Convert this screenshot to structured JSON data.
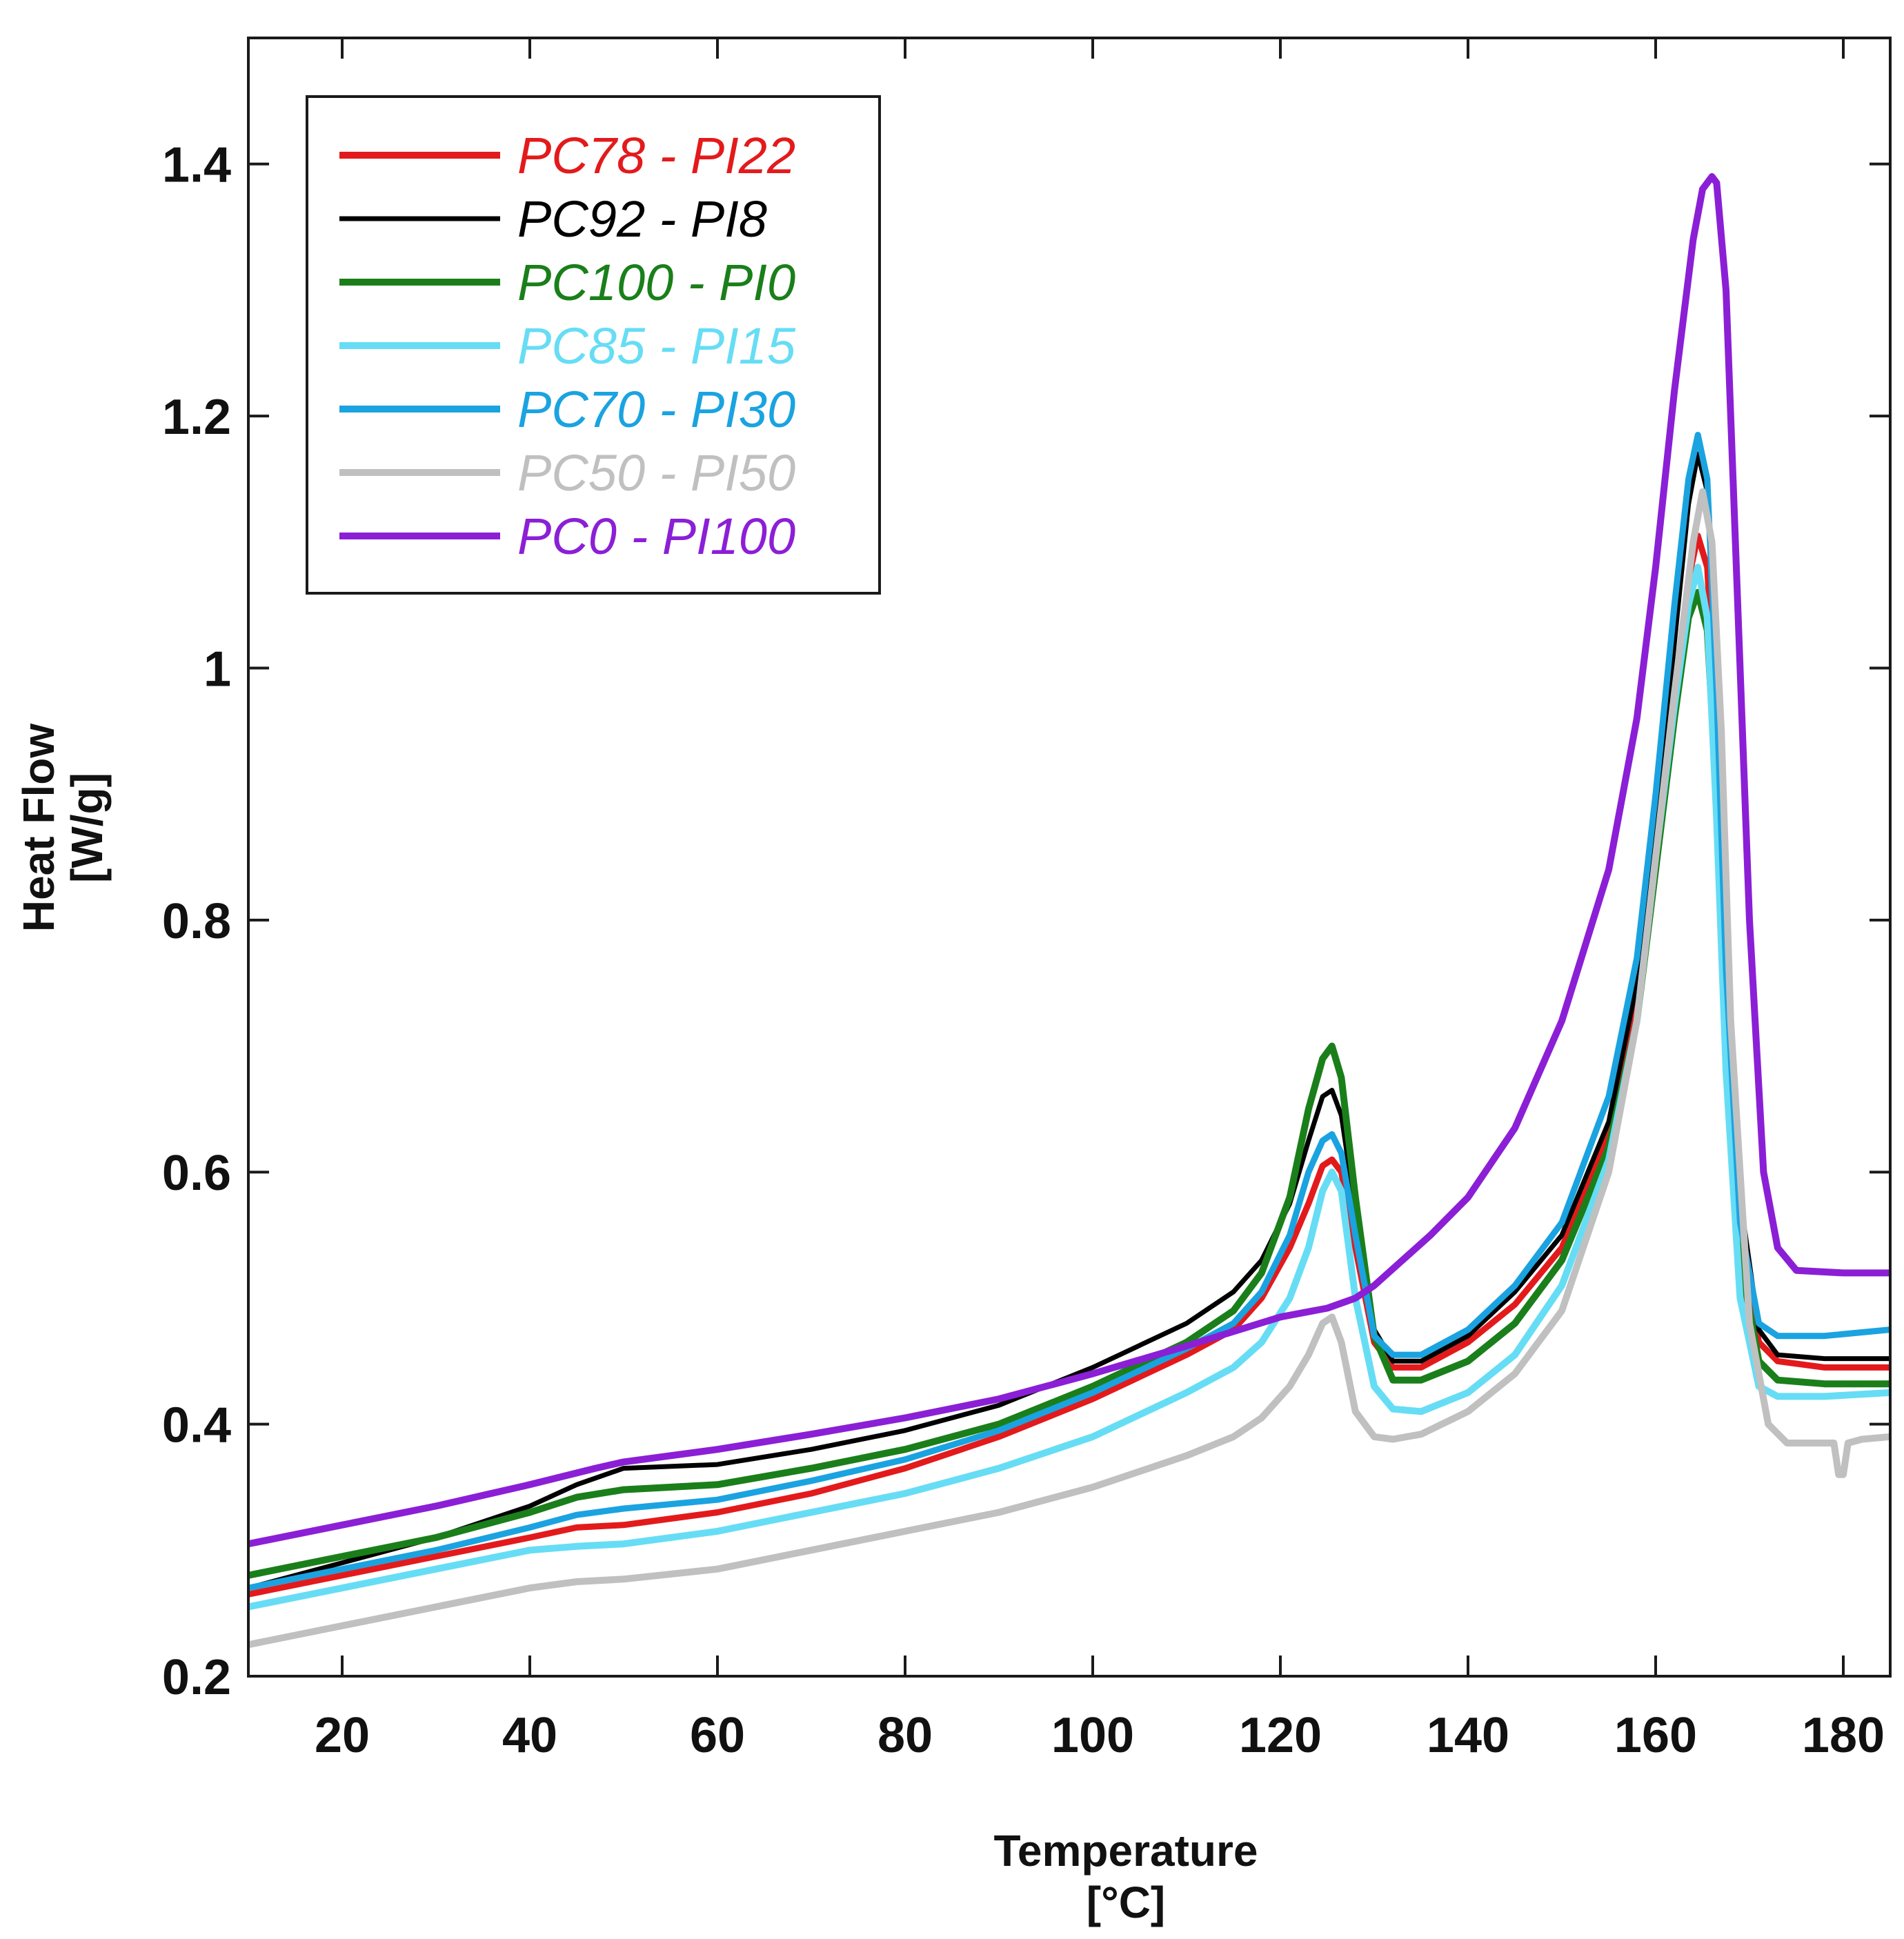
{
  "chart_data": {
    "type": "line",
    "title": "",
    "xlabel": "Temperature",
    "xunit": "[°C]",
    "ylabel": "Heat Flow",
    "yunit": "[W/g]",
    "xlim": [
      10,
      185
    ],
    "ylim": [
      0.2,
      1.5
    ],
    "xticks": [
      20,
      40,
      60,
      80,
      100,
      120,
      140,
      160,
      180
    ],
    "xtick_labels": [
      "20",
      "40",
      "60",
      "80",
      "100",
      "120",
      "140",
      "160",
      "180"
    ],
    "yticks": [
      0.2,
      0.4,
      0.6,
      0.8,
      1.0,
      1.2,
      1.4
    ],
    "ytick_labels": [
      "0.2",
      "0.4",
      "0.6",
      "0.8",
      "1",
      "1.2",
      "1.4"
    ],
    "grid": false,
    "legend_position": "top-left",
    "series": [
      {
        "name": "PC78 - PI22",
        "color": "#e31a1c",
        "x": [
          10,
          20,
          30,
          40,
          45,
          50,
          60,
          70,
          80,
          90,
          100,
          110,
          115,
          118,
          121,
          123,
          124.5,
          125.5,
          126.5,
          128,
          130,
          132,
          135,
          140,
          145,
          150,
          155,
          158,
          160,
          162,
          163.5,
          164.5,
          165.5,
          166.5,
          167.5,
          169,
          171,
          173,
          178,
          185
        ],
        "y": [
          0.265,
          0.28,
          0.295,
          0.31,
          0.318,
          0.32,
          0.33,
          0.345,
          0.365,
          0.39,
          0.42,
          0.455,
          0.475,
          0.5,
          0.54,
          0.575,
          0.605,
          0.61,
          0.6,
          0.54,
          0.465,
          0.445,
          0.445,
          0.465,
          0.495,
          0.54,
          0.63,
          0.73,
          0.85,
          0.98,
          1.07,
          1.105,
          1.08,
          0.95,
          0.75,
          0.55,
          0.465,
          0.45,
          0.445,
          0.445
        ]
      },
      {
        "name": "PC92 - PI8",
        "color": "#000000",
        "x": [
          10,
          20,
          30,
          40,
          45,
          50,
          60,
          70,
          80,
          90,
          100,
          110,
          115,
          118,
          121,
          123,
          124.5,
          125.5,
          126.5,
          128,
          130,
          132,
          135,
          140,
          145,
          150,
          155,
          158,
          160,
          162,
          163.5,
          164.5,
          165.5,
          166.5,
          167.5,
          169,
          171,
          173,
          178,
          185
        ],
        "y": [
          0.27,
          0.29,
          0.31,
          0.335,
          0.352,
          0.365,
          0.368,
          0.38,
          0.395,
          0.415,
          0.445,
          0.48,
          0.505,
          0.53,
          0.575,
          0.625,
          0.66,
          0.665,
          0.645,
          0.57,
          0.475,
          0.45,
          0.45,
          0.47,
          0.505,
          0.55,
          0.64,
          0.75,
          0.87,
          1.02,
          1.13,
          1.17,
          1.14,
          1.0,
          0.8,
          0.58,
          0.475,
          0.455,
          0.452,
          0.452
        ]
      },
      {
        "name": "PC100 - PI0",
        "color": "#1a7f1a",
        "x": [
          10,
          20,
          30,
          40,
          45,
          50,
          60,
          70,
          80,
          90,
          100,
          110,
          115,
          118,
          121,
          123,
          124.5,
          125.5,
          126.5,
          128,
          130,
          132,
          135,
          140,
          145,
          150,
          155,
          158,
          160,
          162,
          163.5,
          164.5,
          165.5,
          166.5,
          167.5,
          169,
          171,
          173,
          178,
          185
        ],
        "y": [
          0.28,
          0.295,
          0.31,
          0.33,
          0.342,
          0.348,
          0.352,
          0.365,
          0.38,
          0.4,
          0.43,
          0.465,
          0.49,
          0.52,
          0.58,
          0.65,
          0.69,
          0.7,
          0.675,
          0.58,
          0.47,
          0.435,
          0.435,
          0.45,
          0.48,
          0.53,
          0.62,
          0.72,
          0.84,
          0.96,
          1.04,
          1.06,
          1.03,
          0.9,
          0.72,
          0.53,
          0.45,
          0.435,
          0.432,
          0.432
        ]
      },
      {
        "name": "PC85 - PI15",
        "color": "#66ddf5",
        "x": [
          10,
          20,
          30,
          40,
          45,
          50,
          60,
          70,
          80,
          90,
          100,
          110,
          115,
          118,
          121,
          123,
          124.5,
          125.5,
          126.5,
          128,
          130,
          132,
          135,
          140,
          145,
          150,
          155,
          158,
          160,
          162,
          163.5,
          164.5,
          165.5,
          166.5,
          167.5,
          169,
          171,
          173,
          178,
          185
        ],
        "y": [
          0.255,
          0.27,
          0.285,
          0.3,
          0.303,
          0.305,
          0.315,
          0.33,
          0.345,
          0.365,
          0.39,
          0.425,
          0.445,
          0.465,
          0.5,
          0.54,
          0.585,
          0.6,
          0.585,
          0.5,
          0.43,
          0.412,
          0.41,
          0.425,
          0.455,
          0.51,
          0.61,
          0.72,
          0.85,
          0.97,
          1.05,
          1.08,
          1.04,
          0.88,
          0.68,
          0.5,
          0.43,
          0.422,
          0.422,
          0.425
        ]
      },
      {
        "name": "PC70 - PI30",
        "color": "#1aa3e0",
        "x": [
          10,
          20,
          30,
          40,
          45,
          50,
          60,
          70,
          80,
          90,
          100,
          110,
          115,
          118,
          121,
          123,
          124.5,
          125.5,
          126.5,
          128,
          130,
          132,
          135,
          140,
          145,
          150,
          155,
          158,
          160,
          162,
          163.5,
          164.5,
          165.5,
          166.5,
          167.5,
          169,
          171,
          173,
          178,
          185
        ],
        "y": [
          0.27,
          0.285,
          0.3,
          0.318,
          0.328,
          0.333,
          0.34,
          0.355,
          0.372,
          0.395,
          0.425,
          0.46,
          0.48,
          0.505,
          0.55,
          0.6,
          0.625,
          0.63,
          0.615,
          0.55,
          0.47,
          0.455,
          0.455,
          0.475,
          0.51,
          0.56,
          0.66,
          0.77,
          0.9,
          1.05,
          1.15,
          1.185,
          1.15,
          0.98,
          0.76,
          0.56,
          0.48,
          0.47,
          0.47,
          0.475
        ]
      },
      {
        "name": "PC50 - PI50",
        "color": "#c0c0c0",
        "x": [
          10,
          20,
          30,
          40,
          45,
          50,
          60,
          70,
          80,
          90,
          100,
          110,
          115,
          118,
          121,
          123,
          124.5,
          125.5,
          126.5,
          128,
          130,
          132,
          135,
          140,
          145,
          150,
          155,
          158,
          160,
          162,
          164,
          165,
          166,
          167,
          168,
          170,
          172,
          174,
          179,
          179.5,
          180,
          180.5,
          182,
          185
        ],
        "y": [
          0.225,
          0.24,
          0.255,
          0.27,
          0.275,
          0.277,
          0.285,
          0.3,
          0.315,
          0.33,
          0.35,
          0.375,
          0.39,
          0.405,
          0.43,
          0.455,
          0.48,
          0.485,
          0.465,
          0.41,
          0.39,
          0.388,
          0.392,
          0.41,
          0.44,
          0.49,
          0.6,
          0.72,
          0.85,
          0.98,
          1.1,
          1.14,
          1.1,
          0.95,
          0.72,
          0.48,
          0.4,
          0.385,
          0.385,
          0.36,
          0.36,
          0.385,
          0.388,
          0.39
        ]
      },
      {
        "name": "PC0 - PI100",
        "color": "#8b1fd6",
        "x": [
          10,
          20,
          30,
          40,
          47,
          50,
          60,
          70,
          80,
          90,
          100,
          110,
          120,
          125,
          128,
          130,
          133,
          136,
          140,
          145,
          150,
          155,
          158,
          160,
          162,
          164,
          165,
          166,
          166.5,
          167.5,
          168.5,
          170,
          171.5,
          173,
          175,
          180,
          185
        ],
        "y": [
          0.305,
          0.32,
          0.335,
          0.352,
          0.365,
          0.37,
          0.38,
          0.392,
          0.405,
          0.42,
          0.44,
          0.462,
          0.485,
          0.492,
          0.5,
          0.51,
          0.53,
          0.55,
          0.58,
          0.635,
          0.72,
          0.84,
          0.96,
          1.08,
          1.22,
          1.34,
          1.38,
          1.39,
          1.385,
          1.3,
          1.1,
          0.8,
          0.6,
          0.54,
          0.522,
          0.52,
          0.52
        ]
      }
    ]
  }
}
